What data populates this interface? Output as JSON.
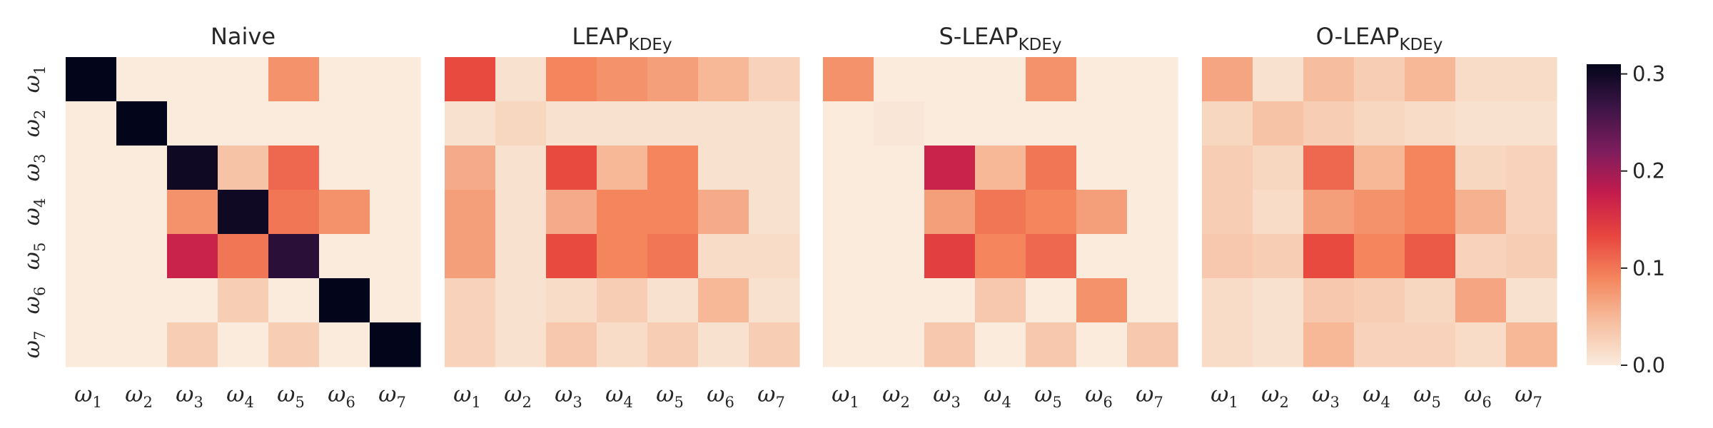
{
  "chart_data": [
    {
      "type": "heatmap",
      "title_main": "Naive",
      "title_sub": "",
      "x_tick_labels": [
        "ω1",
        "ω2",
        "ω3",
        "ω4",
        "ω5",
        "ω6",
        "ω7"
      ],
      "y_tick_labels": [
        "ω1",
        "ω2",
        "ω3",
        "ω4",
        "ω5",
        "ω6",
        "ω7"
      ],
      "values": [
        [
          0.32,
          0.0,
          0.0,
          0.0,
          0.08,
          0.0,
          0.0
        ],
        [
          0.0,
          0.32,
          0.0,
          0.0,
          0.0,
          0.0,
          0.0
        ],
        [
          0.0,
          0.0,
          0.3,
          0.04,
          0.11,
          0.0,
          0.0
        ],
        [
          0.0,
          0.0,
          0.08,
          0.3,
          0.1,
          0.08,
          0.0
        ],
        [
          0.0,
          0.0,
          0.17,
          0.1,
          0.28,
          0.0,
          0.0
        ],
        [
          0.0,
          0.0,
          0.0,
          0.03,
          0.0,
          0.32,
          0.0
        ],
        [
          0.0,
          0.0,
          0.03,
          0.0,
          0.03,
          0.0,
          0.32
        ]
      ]
    },
    {
      "type": "heatmap",
      "title_main": "LEAP",
      "title_sub": "KDEy",
      "x_tick_labels": [
        "ω1",
        "ω2",
        "ω3",
        "ω4",
        "ω5",
        "ω6",
        "ω7"
      ],
      "y_tick_labels": [
        "ω1",
        "ω2",
        "ω3",
        "ω4",
        "ω5",
        "ω6",
        "ω7"
      ],
      "values": [
        [
          0.13,
          0.01,
          0.09,
          0.08,
          0.07,
          0.05,
          0.025
        ],
        [
          0.01,
          0.02,
          0.01,
          0.01,
          0.01,
          0.01,
          0.01
        ],
        [
          0.06,
          0.01,
          0.13,
          0.05,
          0.09,
          0.01,
          0.01
        ],
        [
          0.07,
          0.01,
          0.06,
          0.09,
          0.09,
          0.06,
          0.01
        ],
        [
          0.07,
          0.01,
          0.13,
          0.09,
          0.1,
          0.015,
          0.015
        ],
        [
          0.025,
          0.01,
          0.015,
          0.03,
          0.01,
          0.05,
          0.01
        ],
        [
          0.025,
          0.01,
          0.035,
          0.015,
          0.03,
          0.01,
          0.03
        ]
      ]
    },
    {
      "type": "heatmap",
      "title_main": "S-LEAP",
      "title_sub": "KDEy",
      "x_tick_labels": [
        "ω1",
        "ω2",
        "ω3",
        "ω4",
        "ω5",
        "ω6",
        "ω7"
      ],
      "y_tick_labels": [
        "ω1",
        "ω2",
        "ω3",
        "ω4",
        "ω5",
        "ω6",
        "ω7"
      ],
      "values": [
        [
          0.08,
          0.0,
          0.0,
          0.0,
          0.08,
          0.0,
          0.0
        ],
        [
          0.0,
          0.005,
          0.0,
          0.0,
          0.0,
          0.0,
          0.0
        ],
        [
          0.0,
          0.0,
          0.17,
          0.05,
          0.1,
          0.0,
          0.0
        ],
        [
          0.0,
          0.0,
          0.07,
          0.1,
          0.09,
          0.07,
          0.0
        ],
        [
          0.0,
          0.0,
          0.14,
          0.09,
          0.11,
          0.0,
          0.0
        ],
        [
          0.0,
          0.0,
          0.0,
          0.035,
          0.0,
          0.08,
          0.0
        ],
        [
          0.0,
          0.0,
          0.035,
          0.0,
          0.035,
          0.0,
          0.035
        ]
      ]
    },
    {
      "type": "heatmap",
      "title_main": "O-LEAP",
      "title_sub": "KDEy",
      "x_tick_labels": [
        "ω1",
        "ω2",
        "ω3",
        "ω4",
        "ω5",
        "ω6",
        "ω7"
      ],
      "y_tick_labels": [
        "ω1",
        "ω2",
        "ω3",
        "ω4",
        "ω5",
        "ω6",
        "ω7"
      ],
      "values": [
        [
          0.065,
          0.01,
          0.045,
          0.03,
          0.05,
          0.015,
          0.015
        ],
        [
          0.02,
          0.04,
          0.03,
          0.02,
          0.015,
          0.01,
          0.01
        ],
        [
          0.03,
          0.02,
          0.11,
          0.05,
          0.09,
          0.02,
          0.025
        ],
        [
          0.03,
          0.015,
          0.07,
          0.08,
          0.09,
          0.055,
          0.025
        ],
        [
          0.035,
          0.03,
          0.13,
          0.09,
          0.12,
          0.025,
          0.03
        ],
        [
          0.015,
          0.01,
          0.035,
          0.03,
          0.02,
          0.065,
          0.01
        ],
        [
          0.015,
          0.01,
          0.05,
          0.025,
          0.025,
          0.015,
          0.05
        ]
      ]
    }
  ],
  "colorbar": {
    "vmin": 0.0,
    "vmax": 0.31,
    "ticks": [
      "0.0",
      "0.1",
      "0.2",
      "0.3"
    ],
    "colormap": [
      "#faebdd",
      "#f6bfa0",
      "#f4875e",
      "#e8463e",
      "#c41c4d",
      "#7c1d5d",
      "#3c1546",
      "#03051a"
    ]
  }
}
